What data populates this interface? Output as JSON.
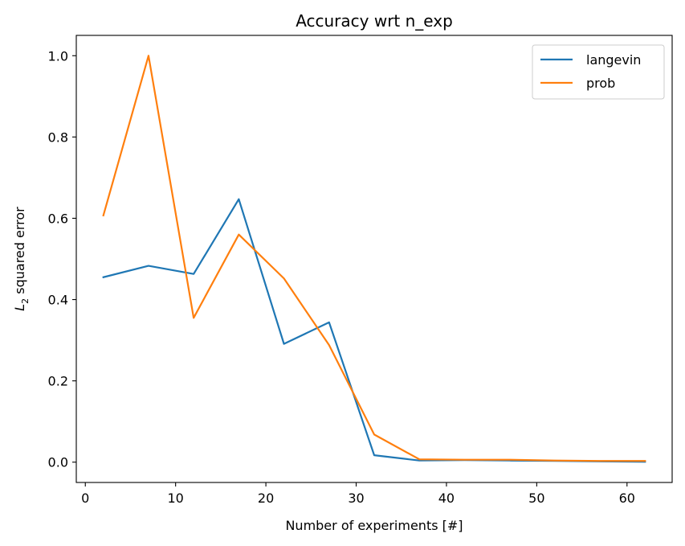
{
  "chart_data": {
    "type": "line",
    "title": "Accuracy wrt n_exp",
    "xlabel": "Number of experiments [#]",
    "ylabel_main": "L",
    "ylabel_sub": "2",
    "ylabel_rest": " squared error",
    "xlim": [
      -1.0,
      65.0
    ],
    "ylim": [
      -0.05,
      1.05
    ],
    "xticks": [
      0,
      10,
      20,
      30,
      40,
      50,
      60
    ],
    "yticks": [
      0.0,
      0.2,
      0.4,
      0.6,
      0.8,
      1.0
    ],
    "xtick_labels": [
      "0",
      "10",
      "20",
      "30",
      "40",
      "50",
      "60"
    ],
    "ytick_labels": [
      "0.0",
      "0.2",
      "0.4",
      "0.6",
      "0.8",
      "1.0"
    ],
    "x": [
      2,
      7,
      12,
      17,
      22,
      27,
      32,
      37,
      42,
      47,
      52,
      57,
      62
    ],
    "legend_position": "top-right",
    "grid": false,
    "series": [
      {
        "name": "langevin",
        "color": "#1f77b4",
        "values": [
          0.455,
          0.483,
          0.463,
          0.647,
          0.291,
          0.344,
          0.017,
          0.004,
          0.005,
          0.004,
          0.003,
          0.002,
          0.001
        ]
      },
      {
        "name": "prob",
        "color": "#ff7f0e",
        "values": [
          0.607,
          1.0,
          0.355,
          0.56,
          0.452,
          0.288,
          0.068,
          0.007,
          0.006,
          0.006,
          0.004,
          0.003,
          0.003
        ]
      }
    ]
  }
}
